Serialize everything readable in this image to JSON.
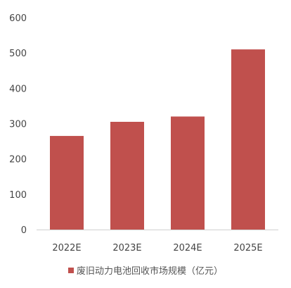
{
  "chart_data": {
    "type": "bar",
    "title": "",
    "xlabel": "",
    "ylabel": "",
    "categories": [
      "2022E",
      "2023E",
      "2024E",
      "2025E"
    ],
    "series": [
      {
        "name": "废旧动力电池回收市场规模（亿元）",
        "values": [
          265,
          305,
          320,
          510
        ],
        "color": "#c0504d"
      }
    ],
    "ylim": [
      0,
      600
    ],
    "yticks": [
      0,
      100,
      200,
      300,
      400,
      500,
      600
    ],
    "grid": false,
    "legend_position": "bottom"
  }
}
